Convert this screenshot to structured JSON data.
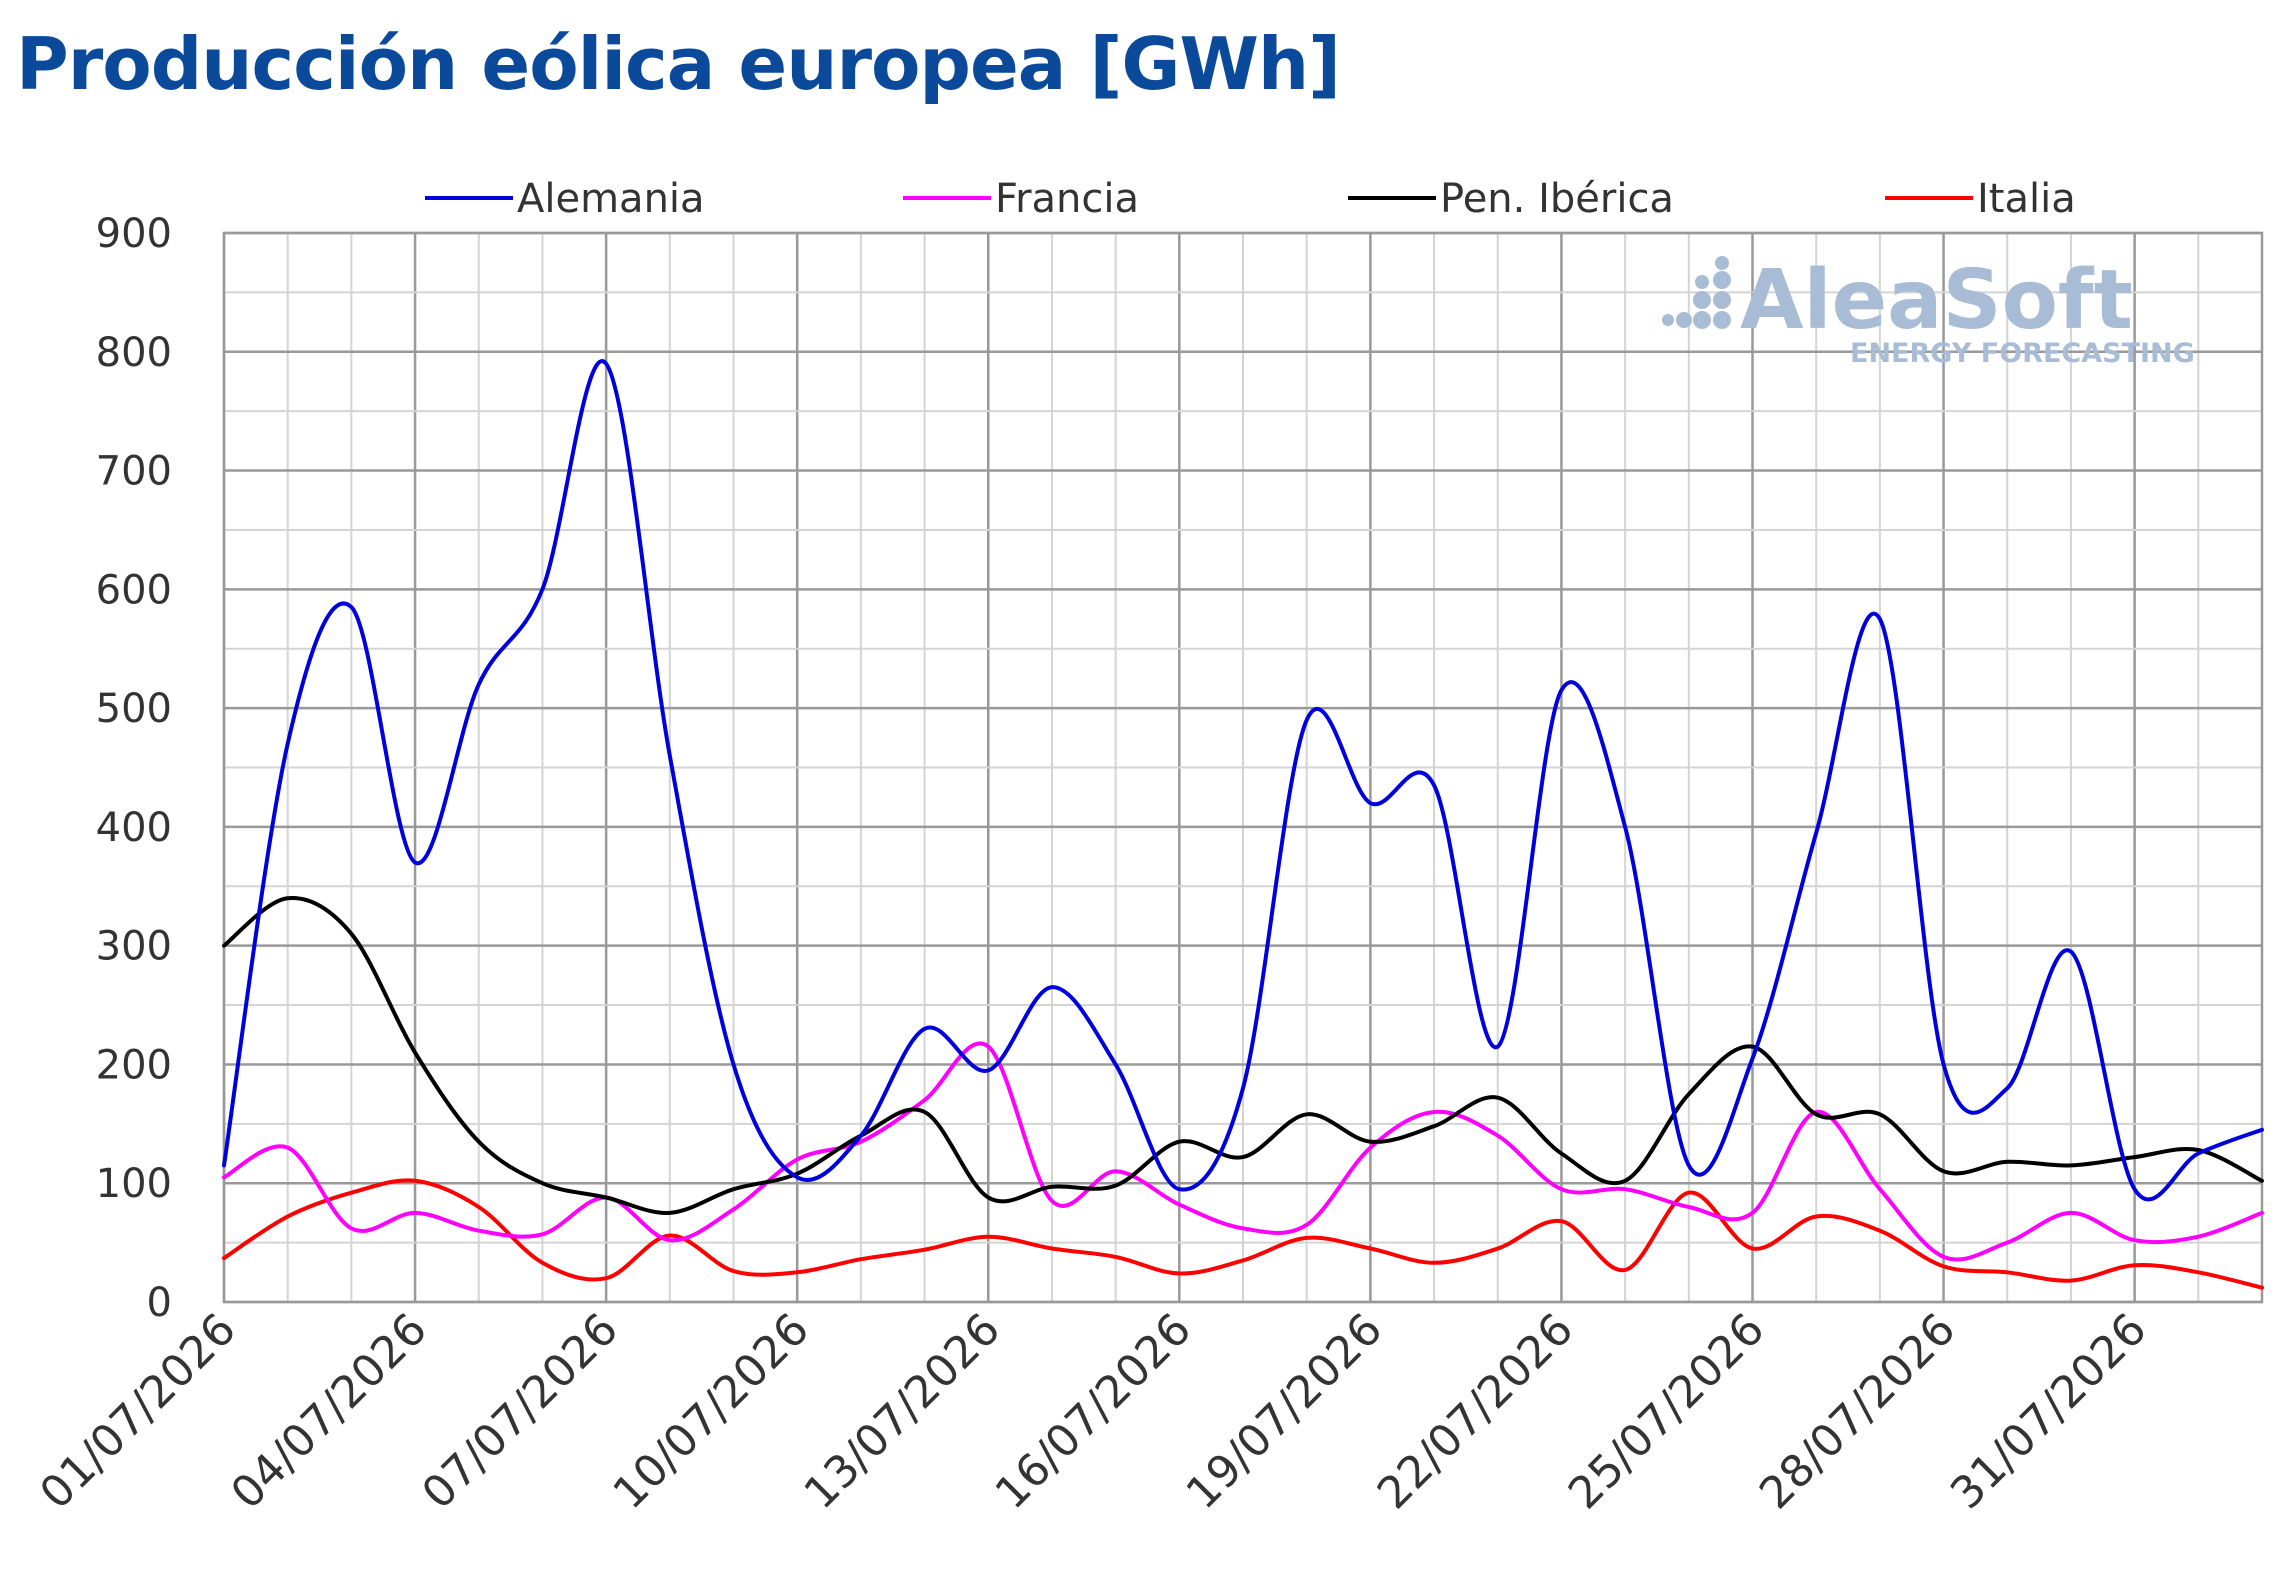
{
  "title": "Producción eólica europea [GWh]",
  "watermark": {
    "brand": "AleaSoft",
    "tagline": "ENERGY FORECASTING"
  },
  "chart_data": {
    "type": "line",
    "title": "Producción eólica europea [GWh]",
    "xlabel": "",
    "ylabel": "",
    "ylim": [
      0,
      900
    ],
    "yticks": [
      0,
      100,
      200,
      300,
      400,
      500,
      600,
      700,
      800,
      900
    ],
    "grid": true,
    "legend_position": "top",
    "x_tick_labels": [
      "01/07/2026",
      "04/07/2026",
      "07/07/2026",
      "10/07/2026",
      "13/07/2026",
      "16/07/2026",
      "19/07/2026",
      "22/07/2026",
      "25/07/2026",
      "28/07/2026",
      "31/07/2026"
    ],
    "categories": [
      "01/07/2026",
      "02/07/2026",
      "03/07/2026",
      "04/07/2026",
      "05/07/2026",
      "06/07/2026",
      "07/07/2026",
      "08/07/2026",
      "09/07/2026",
      "10/07/2026",
      "11/07/2026",
      "12/07/2026",
      "13/07/2026",
      "14/07/2026",
      "15/07/2026",
      "16/07/2026",
      "17/07/2026",
      "18/07/2026",
      "19/07/2026",
      "20/07/2026",
      "21/07/2026",
      "22/07/2026",
      "23/07/2026",
      "24/07/2026",
      "25/07/2026",
      "26/07/2026",
      "27/07/2026",
      "28/07/2026",
      "29/07/2026",
      "30/07/2026",
      "31/07/2026",
      "01/08/2026",
      "02/08/2026"
    ],
    "series": [
      {
        "name": "Alemania",
        "color": "#0000dd",
        "values": [
          115,
          470,
          585,
          370,
          520,
          600,
          790,
          460,
          200,
          105,
          140,
          230,
          195,
          265,
          200,
          95,
          180,
          490,
          420,
          435,
          215,
          515,
          400,
          115,
          205,
          395,
          575,
          200,
          180,
          295,
          95,
          125,
          145
        ]
      },
      {
        "name": "Francia",
        "color": "#ff00ff",
        "values": [
          105,
          130,
          62,
          75,
          60,
          57,
          88,
          52,
          78,
          120,
          135,
          170,
          215,
          85,
          110,
          82,
          62,
          65,
          130,
          160,
          140,
          95,
          95,
          80,
          75,
          160,
          95,
          38,
          50,
          75,
          52,
          55,
          75
        ]
      },
      {
        "name": "Pen. Ibérica",
        "color": "#000000",
        "values": [
          300,
          340,
          310,
          210,
          135,
          100,
          88,
          75,
          95,
          108,
          140,
          160,
          88,
          97,
          98,
          135,
          122,
          158,
          135,
          148,
          172,
          125,
          102,
          175,
          215,
          158,
          158,
          110,
          118,
          115,
          122,
          128,
          102
        ]
      },
      {
        "name": "Italia",
        "color": "#ff0000",
        "values": [
          37,
          72,
          92,
          102,
          80,
          33,
          20,
          56,
          26,
          25,
          36,
          44,
          55,
          45,
          38,
          24,
          35,
          54,
          45,
          33,
          45,
          68,
          27,
          92,
          45,
          72,
          60,
          30,
          25,
          18,
          31,
          25,
          12
        ]
      }
    ]
  }
}
